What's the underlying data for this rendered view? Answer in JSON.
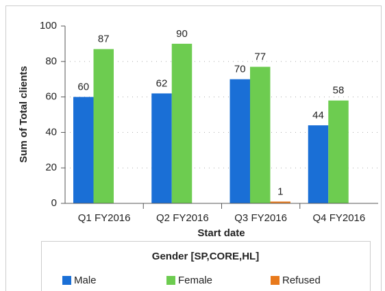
{
  "chart_data": {
    "type": "bar",
    "xlabel": "Start date",
    "ylabel": "Sum of Total clients",
    "categories": [
      "Q1 FY2016",
      "Q2 FY2016",
      "Q3 FY2016",
      "Q4 FY2016"
    ],
    "series": [
      {
        "name": "Male",
        "color": "#1a6fd6",
        "values": [
          60,
          62,
          70,
          44
        ]
      },
      {
        "name": "Female",
        "color": "#6dcc50",
        "values": [
          87,
          90,
          77,
          58
        ]
      },
      {
        "name": "Refused",
        "color": "#e87a1c",
        "values": [
          null,
          null,
          1,
          null
        ]
      }
    ],
    "ylim": [
      0,
      100
    ],
    "yticks": [
      0,
      20,
      40,
      60,
      80,
      100
    ],
    "grid": true,
    "legend_title": "Gender [SP,CORE,HL]",
    "legend": "bottom"
  }
}
